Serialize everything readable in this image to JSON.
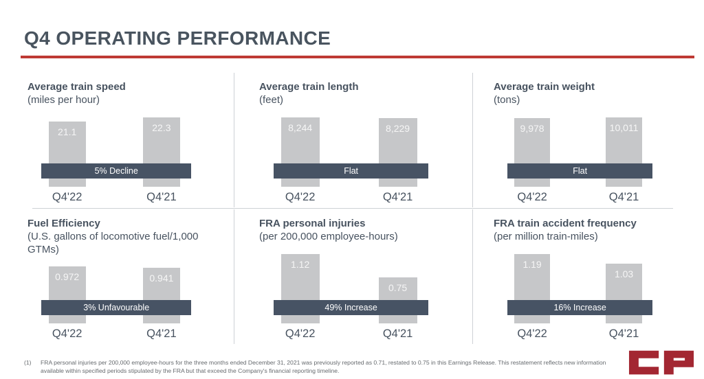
{
  "header": {
    "title": "Q4 OPERATING PERFORMANCE"
  },
  "colors": {
    "accent_red": "#BE3A34",
    "slate_text": "#47525F",
    "band_fill": "#475364",
    "bar_fill": "#C6C7C9",
    "divider": "#CDD1D5",
    "logo_red": "#A32732"
  },
  "chart_data": [
    {
      "type": "bar",
      "title": "Average train speed",
      "subtitle": "(miles per hour)",
      "categories": [
        "Q4'22",
        "Q4'21"
      ],
      "values": [
        21.1,
        22.3
      ],
      "value_labels": [
        "21.1",
        "22.3"
      ],
      "annotation": "5% Decline"
    },
    {
      "type": "bar",
      "title": "Average train length",
      "subtitle": "(feet)",
      "categories": [
        "Q4'22",
        "Q4'21"
      ],
      "values": [
        8244,
        8229
      ],
      "value_labels": [
        "8,244",
        "8,229"
      ],
      "annotation": "Flat"
    },
    {
      "type": "bar",
      "title": "Average train weight",
      "subtitle": "(tons)",
      "categories": [
        "Q4'22",
        "Q4'21"
      ],
      "values": [
        9978,
        10011
      ],
      "value_labels": [
        "9,978",
        "10,011"
      ],
      "annotation": "Flat"
    },
    {
      "type": "bar",
      "title": "Fuel Efficiency",
      "subtitle": "(U.S. gallons of locomotive fuel/1,000 GTMs)",
      "categories": [
        "Q4'22",
        "Q4'21"
      ],
      "values": [
        0.972,
        0.941
      ],
      "value_labels": [
        "0.972",
        "0.941"
      ],
      "annotation": "3% Unfavourable"
    },
    {
      "type": "bar",
      "title": "FRA personal injuries",
      "subtitle": "(per 200,000 employee-hours)",
      "categories": [
        "Q4'22",
        "Q4'21"
      ],
      "values": [
        1.12,
        0.75
      ],
      "value_labels": [
        "1.12",
        "0.75"
      ],
      "annotation": "49% Increase"
    },
    {
      "type": "bar",
      "title": "FRA train accident frequency",
      "subtitle": "(per million train-miles)",
      "categories": [
        "Q4'22",
        "Q4'21"
      ],
      "values": [
        1.19,
        1.03
      ],
      "value_labels": [
        "1.19",
        "1.03"
      ],
      "annotation": "16% Increase"
    }
  ],
  "footnote": {
    "marker": "(1)",
    "text": "FRA personal injuries per 200,000 employee-hours for the three months ended December 31, 2021 was previously reported as 0.71, restated to 0.75 in this Earnings Release. This restatement reflects new information available within specified periods stipulated by the FRA but that exceed the Company's financial reporting timeline."
  },
  "logo": {
    "text": "CP"
  }
}
